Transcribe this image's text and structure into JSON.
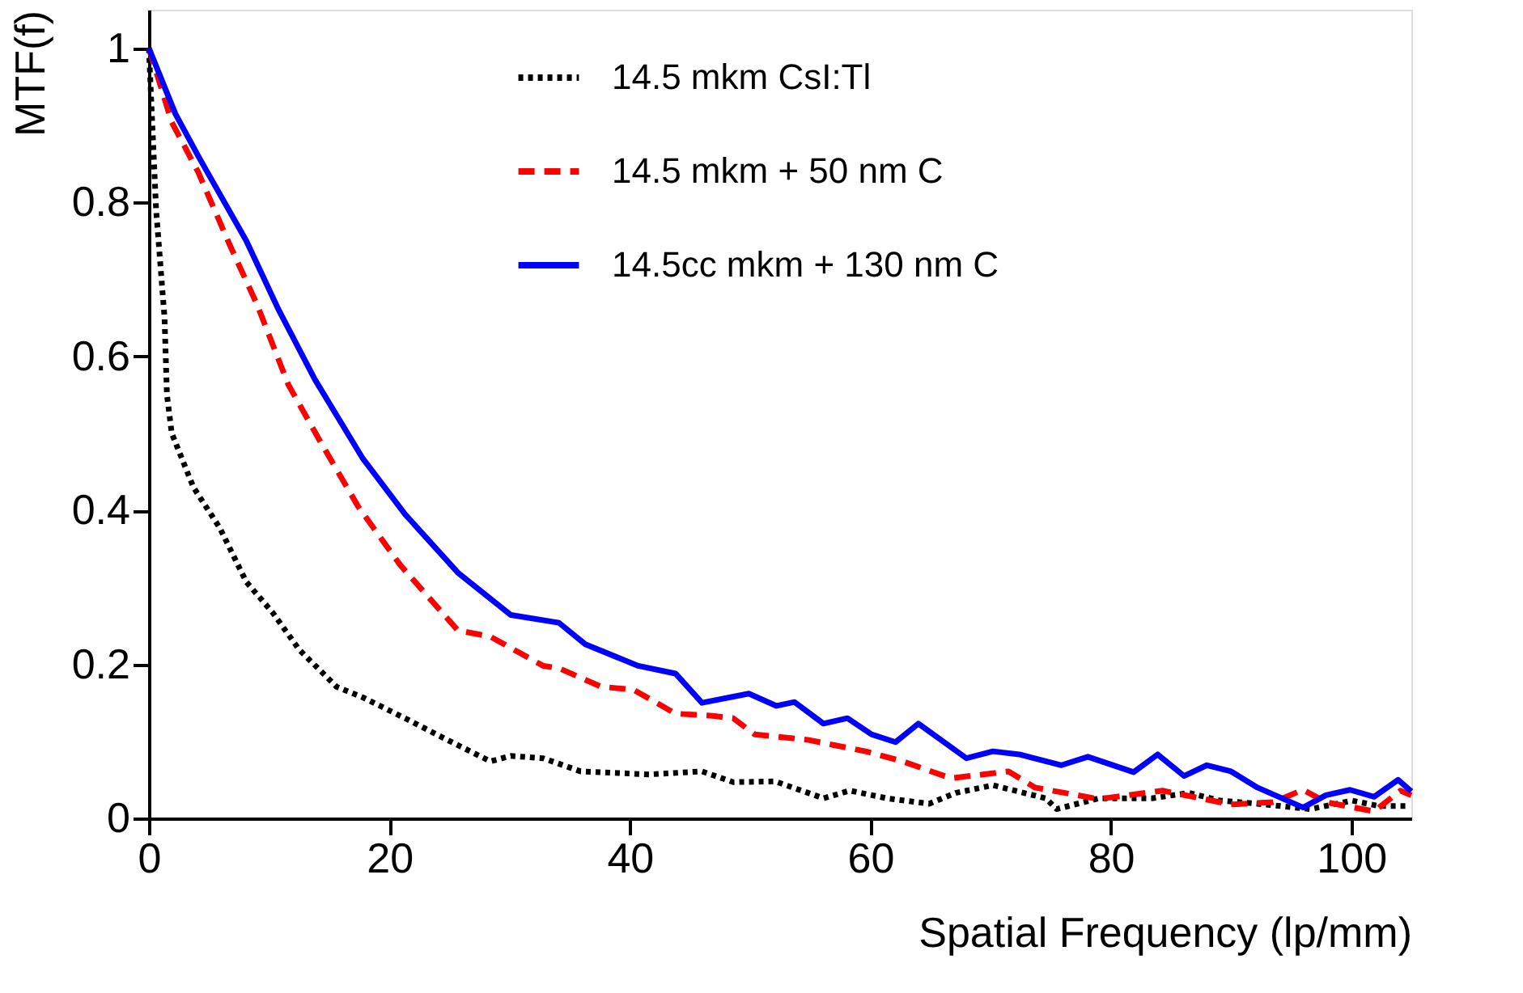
{
  "chart_data": {
    "type": "line",
    "xlabel": "Spatial Frequency (lp/mm)",
    "ylabel": "MTF(f)",
    "xlim": [
      0,
      105
    ],
    "ylim": [
      0,
      1.05
    ],
    "xticks": [
      0,
      20,
      40,
      60,
      80,
      100
    ],
    "yticks": [
      0,
      0.2,
      0.4,
      0.6,
      0.8,
      1
    ],
    "grid": false,
    "legend": "top right",
    "marker": "none",
    "series": [
      {
        "name": "14.5 mkm CsI:Tl",
        "color": "#000000",
        "line_style": "dotted",
        "x": [
          0,
          0.6,
          1.3,
          1.5,
          1.9,
          3.7,
          5.9,
          8.1,
          10.3,
          12.5,
          15.6,
          17.8,
          21.3,
          24.8,
          28.4,
          30.1,
          32.8,
          35.9,
          41.6,
          46,
          48.6,
          52.1,
          56.1,
          58.3,
          61.4,
          64.9,
          67.1,
          70.2,
          74.6,
          75.5,
          79,
          83.4,
          86.5,
          89.1,
          92.2,
          96.6,
          100.1,
          102.3,
          104.5
        ],
        "values": [
          1.0,
          0.79,
          0.65,
          0.55,
          0.5,
          0.43,
          0.377,
          0.307,
          0.267,
          0.219,
          0.171,
          0.157,
          0.13,
          0.102,
          0.074,
          0.081,
          0.078,
          0.061,
          0.057,
          0.061,
          0.047,
          0.048,
          0.026,
          0.036,
          0.026,
          0.019,
          0.033,
          0.043,
          0.026,
          0.012,
          0.026,
          0.026,
          0.033,
          0.023,
          0.019,
          0.012,
          0.023,
          0.016,
          0.016
        ]
      },
      {
        "name": "14.5 mkm + 50 nm C",
        "color": "#ff0000",
        "line_style": "dashed",
        "x": [
          0,
          1.9,
          4.1,
          6.8,
          9,
          11.6,
          14.3,
          17.4,
          20.9,
          25.7,
          28.4,
          32.8,
          34.1,
          37.6,
          40.3,
          43.8,
          46.9,
          48.6,
          50.4,
          54.8,
          57,
          59.6,
          62.7,
          66.7,
          71.5,
          73.7,
          79,
          84.3,
          90,
          93.5,
          96,
          97.9,
          101.9,
          104.1,
          105
        ],
        "values": [
          1.0,
          0.904,
          0.839,
          0.742,
          0.667,
          0.563,
          0.488,
          0.405,
          0.329,
          0.244,
          0.236,
          0.198,
          0.195,
          0.171,
          0.167,
          0.136,
          0.133,
          0.13,
          0.109,
          0.102,
          0.095,
          0.087,
          0.074,
          0.052,
          0.061,
          0.04,
          0.025,
          0.036,
          0.018,
          0.021,
          0.037,
          0.021,
          0.009,
          0.036,
          0.03
        ]
      },
      {
        "name": "14.5cc mkm + 130 nm C",
        "color": "#0000ff",
        "line_style": "solid",
        "x": [
          0,
          2.2,
          4.1,
          8.1,
          10.8,
          13.8,
          17.8,
          21.3,
          25.7,
          30.1,
          34.1,
          36.3,
          40.7,
          43.8,
          46,
          49.9,
          52.2,
          53.7,
          56.1,
          58.1,
          60.1,
          62.1,
          64,
          68,
          70.2,
          72.4,
          75.9,
          78.1,
          81.9,
          83.9,
          86.1,
          88,
          90,
          92.2,
          96,
          97.9,
          99.9,
          101.9,
          103.9,
          105
        ],
        "values": [
          1.0,
          0.915,
          0.86,
          0.75,
          0.66,
          0.57,
          0.467,
          0.395,
          0.319,
          0.264,
          0.254,
          0.226,
          0.198,
          0.188,
          0.15,
          0.162,
          0.146,
          0.151,
          0.123,
          0.13,
          0.109,
          0.099,
          0.123,
          0.078,
          0.087,
          0.083,
          0.069,
          0.08,
          0.06,
          0.083,
          0.055,
          0.069,
          0.061,
          0.04,
          0.014,
          0.03,
          0.037,
          0.028,
          0.05,
          0.035
        ]
      }
    ]
  }
}
